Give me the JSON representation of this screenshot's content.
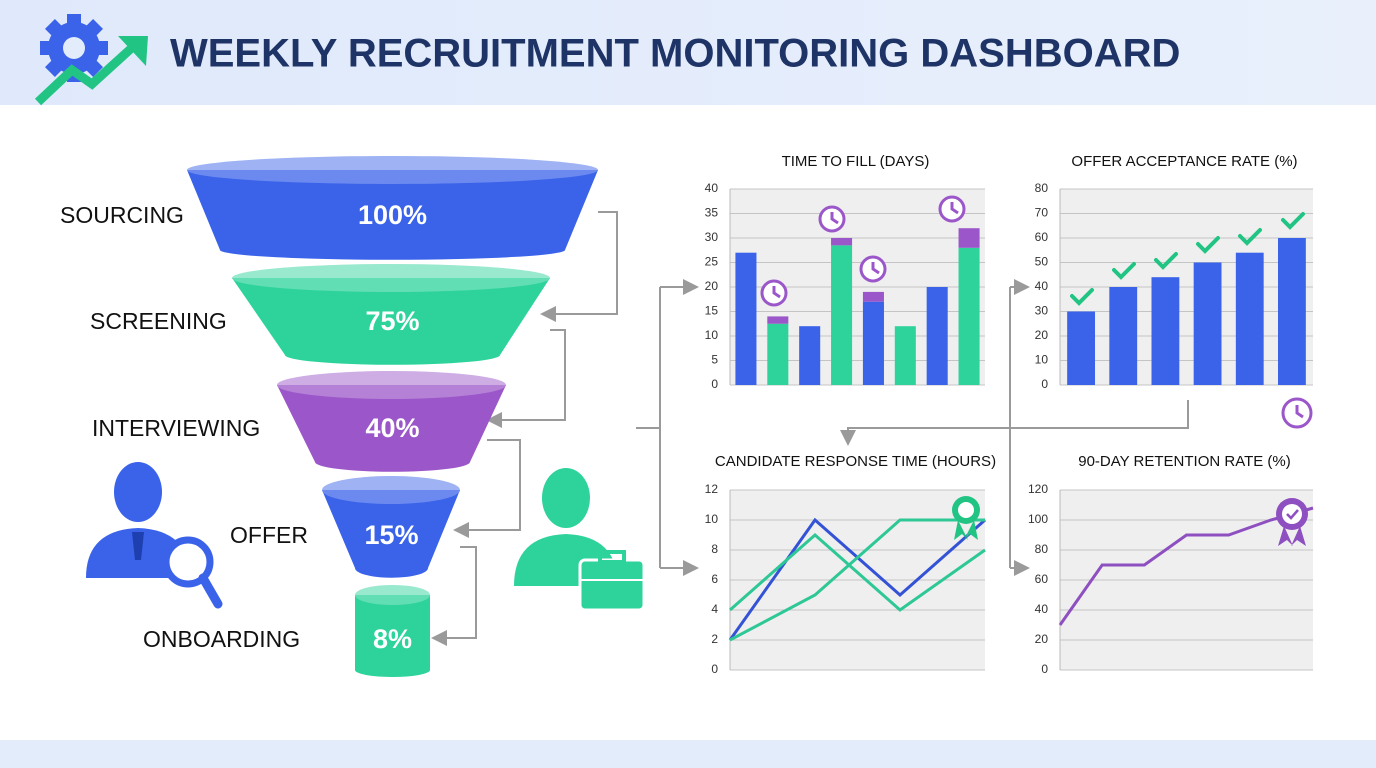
{
  "title": "WEEKLY RECRUITMENT MONITORING DASHBOARD",
  "chart_data": [
    {
      "type": "funnel",
      "categories": [
        "SOURCING",
        "SCREENING",
        "INTERVIEWING",
        "OFFER",
        "ONBOARDING"
      ],
      "values": [
        100,
        75,
        40,
        15,
        8
      ],
      "value_labels": [
        "100%",
        "75%",
        "40%",
        "15%",
        "8%"
      ],
      "colors": [
        "#3a63ea",
        "#2ed39c",
        "#9b57c9",
        "#3a63ea",
        "#2ed39c"
      ]
    },
    {
      "type": "bar",
      "title": "TIME TO FILL (DAYS)",
      "categories": [
        null,
        null,
        null,
        null,
        null,
        null,
        null,
        null
      ],
      "series": [
        {
          "colors": [
            "#3a63ea",
            "#2ed39c",
            "#3a63ea",
            "#2ed39c",
            "#3a63ea",
            "#2ed39c",
            "#3a63ea",
            "#2ed39c"
          ],
          "values": [
            27,
            12.5,
            12,
            28.5,
            17,
            12,
            20,
            28
          ]
        },
        {
          "color": "#9b57c9",
          "values": [
            null,
            1.5,
            null,
            1.5,
            2,
            null,
            null,
            4
          ]
        }
      ],
      "stacked": true,
      "ylim": [
        0,
        40
      ],
      "yticks": [
        0,
        5,
        10,
        15,
        20,
        25,
        30,
        35,
        40
      ],
      "grid": true
    },
    {
      "type": "bar",
      "title": "OFFER ACCEPTANCE RATE (%)",
      "categories": [
        null,
        null,
        null,
        null,
        null,
        null
      ],
      "series": [
        {
          "color": "#3a63ea",
          "values": [
            30,
            40,
            44,
            50,
            54,
            60
          ]
        }
      ],
      "ylim": [
        0,
        80
      ],
      "yticks": [
        0,
        10,
        20,
        30,
        40,
        50,
        60,
        70,
        80
      ],
      "grid": true
    },
    {
      "type": "line",
      "title": "CANDIDATE RESPONSE TIME (HOURS)",
      "categories": [
        null,
        null,
        null,
        null
      ],
      "series": [
        {
          "color": "#3452d6",
          "values": [
            2,
            10,
            5,
            10
          ]
        },
        {
          "color": "#2ec796",
          "values": [
            4,
            9,
            4,
            8
          ]
        },
        {
          "color": "#2ec796",
          "values": [
            2,
            5,
            10,
            10
          ]
        }
      ],
      "ylim": [
        0,
        12
      ],
      "yticks": [
        0,
        2,
        4,
        6,
        8,
        10,
        12
      ],
      "grid": true
    },
    {
      "type": "line",
      "title": "90-DAY RETENTION RATE (%)",
      "categories": [
        null,
        null,
        null,
        null,
        null,
        null,
        null
      ],
      "series": [
        {
          "color": "#8e4fc0",
          "values": [
            30,
            70,
            70,
            90,
            90,
            100,
            108
          ]
        }
      ],
      "ylim": [
        0,
        120
      ],
      "yticks": [
        0,
        20,
        40,
        60,
        80,
        100,
        120
      ],
      "grid": true
    }
  ]
}
